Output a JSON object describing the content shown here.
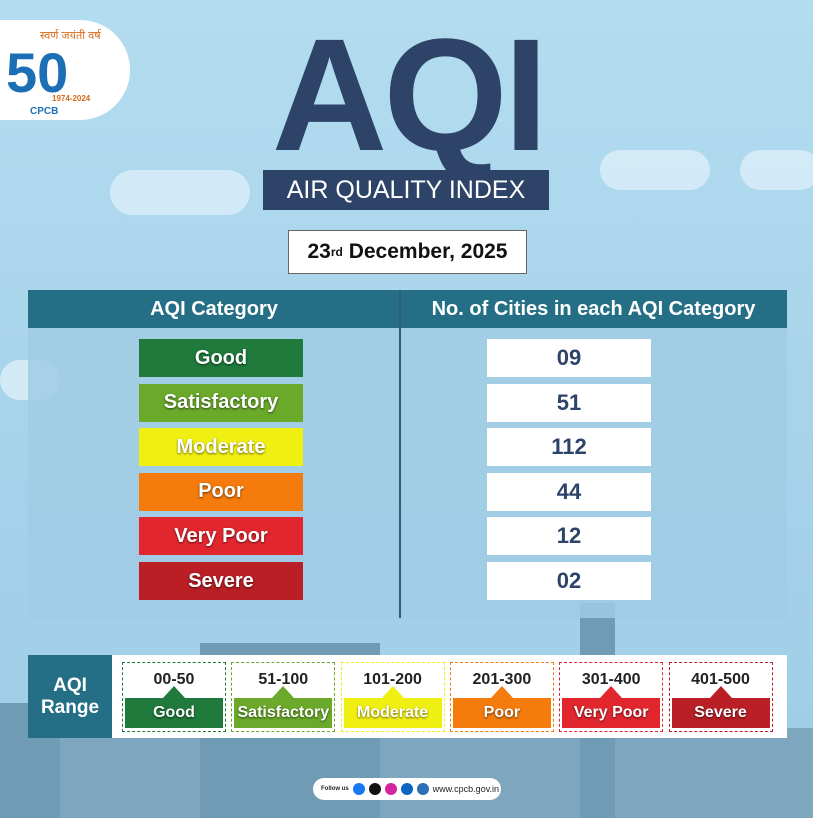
{
  "logo": {
    "tagline": "स्वर्ण जयंती वर्ष",
    "number": "50",
    "years": "1974-2024",
    "org": "CPCB"
  },
  "header": {
    "title": "AQI",
    "subtitle": "AIR QUALITY INDEX"
  },
  "date": {
    "day": "23",
    "suffix": "rd",
    "rest": "December, 2025"
  },
  "table": {
    "columns": [
      "AQI Category",
      "No. of Cities in each AQI Category"
    ],
    "rows": [
      {
        "category": "Good",
        "count": "09",
        "color": "#1f7a3b"
      },
      {
        "category": "Satisfactory",
        "count": "51",
        "color": "#6aa92a"
      },
      {
        "category": "Moderate",
        "count": "112",
        "color": "#f0ef12"
      },
      {
        "category": "Poor",
        "count": "44",
        "color": "#f47b0c"
      },
      {
        "category": "Very Poor",
        "count": "12",
        "color": "#e1262e"
      },
      {
        "category": "Severe",
        "count": "02",
        "color": "#b91f25"
      }
    ]
  },
  "range": {
    "title": "AQI Range",
    "items": [
      {
        "range": "00-50",
        "label": "Good"
      },
      {
        "range": "51-100",
        "label": "Satisfactory"
      },
      {
        "range": "101-200",
        "label": "Moderate"
      },
      {
        "range": "201-300",
        "label": "Poor"
      },
      {
        "range": "301-400",
        "label": "Very Poor"
      },
      {
        "range": "401-500",
        "label": "Severe"
      }
    ]
  },
  "footer": {
    "follow": "Follow us",
    "website": "www.cpcb.gov.in"
  }
}
